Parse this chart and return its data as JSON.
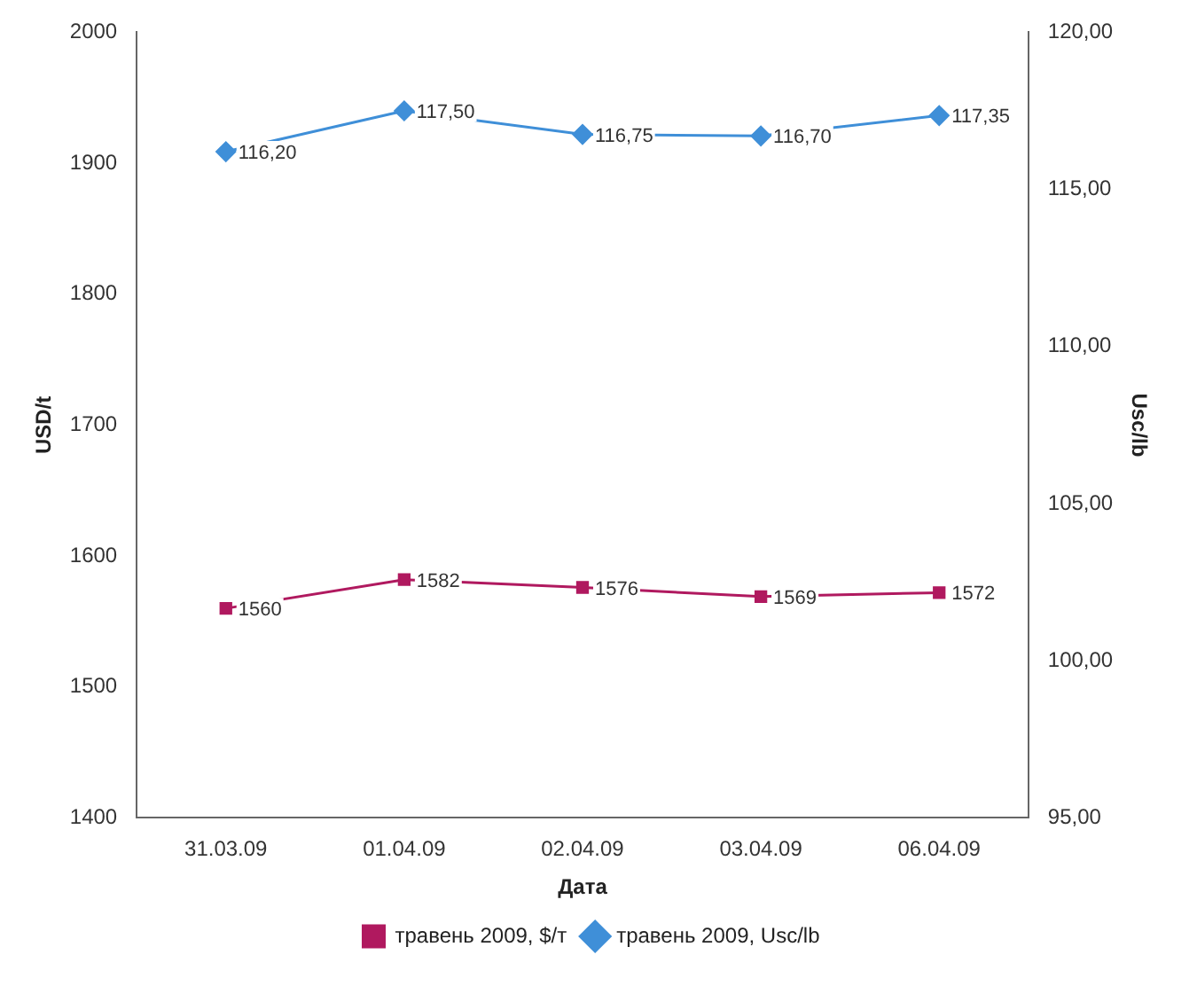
{
  "chart_data": {
    "type": "line",
    "categories": [
      "31.03.09",
      "01.04.09",
      "02.04.09",
      "03.04.09",
      "06.04.09"
    ],
    "xlabel": "Дата",
    "ylabel": "USD/t",
    "y2label": "Usc/lb",
    "ylim": [
      1400,
      2000
    ],
    "yticks": [
      1400,
      1500,
      1600,
      1700,
      1800,
      1900,
      2000
    ],
    "y2lim": [
      95,
      120
    ],
    "y2ticks": [
      {
        "value": 95,
        "label": "95,00"
      },
      {
        "value": 100,
        "label": "100,00"
      },
      {
        "value": 105,
        "label": "105,00"
      },
      {
        "value": 110,
        "label": "110,00"
      },
      {
        "value": 115,
        "label": "115,00"
      },
      {
        "value": 120,
        "label": "120,00"
      }
    ],
    "series": [
      {
        "name": "травень 2009, $/т",
        "color": "#b0195f",
        "marker": "square",
        "values": [
          1560,
          1582,
          1576,
          1569,
          1572
        ],
        "value_labels": [
          "1560",
          "1582",
          "1576",
          "1569",
          "1572"
        ]
      },
      {
        "name": "травень 2009, Usc/lb",
        "color": "#3f8fd8",
        "marker": "diamond",
        "axis": "y2",
        "values": [
          116.2,
          117.5,
          116.75,
          116.7,
          117.35
        ],
        "value_labels": [
          "116,20",
          "117,50",
          "116,75",
          "116,70",
          "117,35"
        ]
      }
    ],
    "legend": "bottom",
    "grid": false
  }
}
